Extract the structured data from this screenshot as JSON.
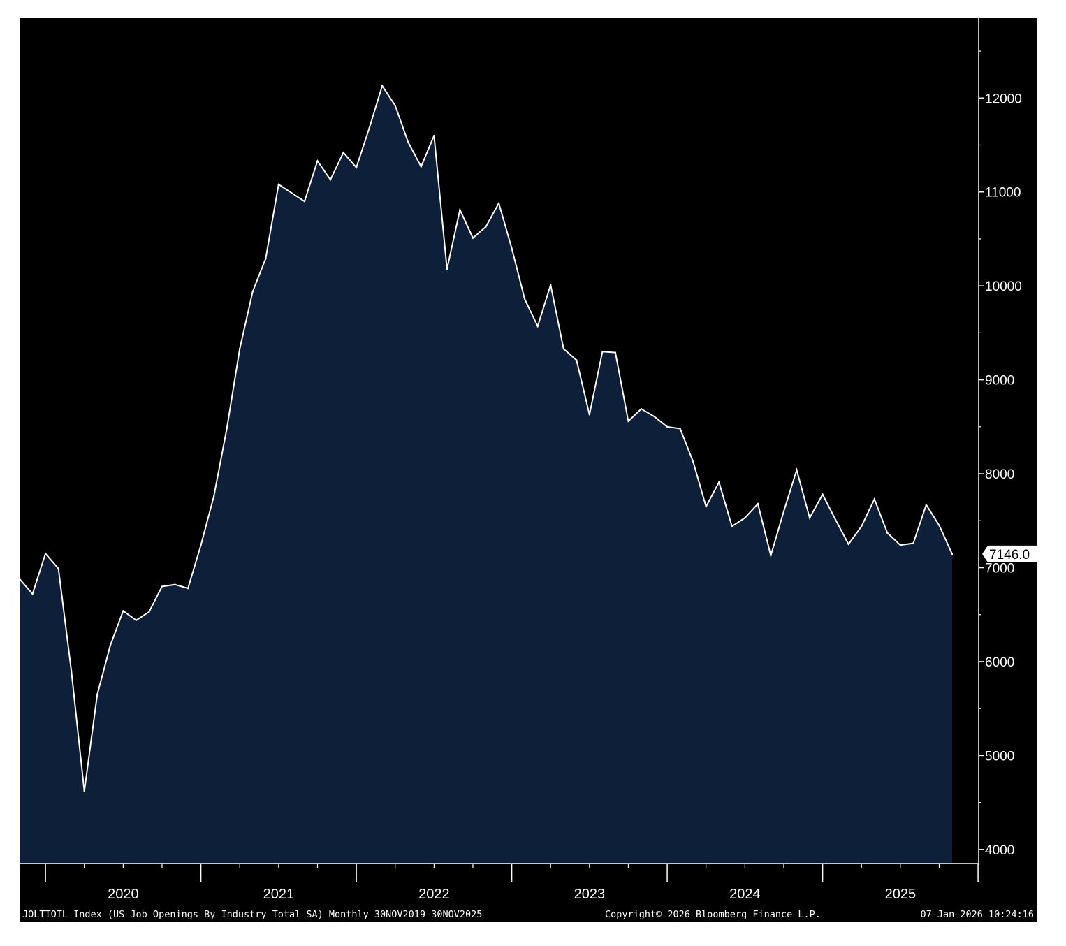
{
  "chart_data": {
    "type": "area",
    "title": "",
    "series": [
      {
        "frequency": "Monthly",
        "values": [
          6880,
          6720,
          7150,
          6990,
          5900,
          4620,
          5650,
          6170,
          6540,
          6440,
          6530,
          6800,
          6820,
          6780,
          7240,
          7760,
          8480,
          9330,
          9940,
          10290,
          11080,
          10990,
          10900,
          11330,
          11130,
          11420,
          11260,
          11680,
          12130,
          11920,
          11530,
          11270,
          11600,
          10180,
          10810,
          10510,
          10630,
          10880,
          10400,
          9860,
          9570,
          10010,
          9330,
          9210,
          8630,
          9300,
          9290,
          8560,
          8690,
          8610,
          8500,
          8480,
          8130,
          7650,
          7910,
          7440,
          7530,
          7680,
          7130,
          7600,
          8040,
          7530,
          7780,
          7510,
          7250,
          7440,
          7730,
          7370,
          7240,
          7260,
          7670,
          7450,
          7146
        ]
      }
    ],
    "x_start": "2019-11-30",
    "x_end": "2025-11-30",
    "x_tick_labels": [
      "2020",
      "2021",
      "2022",
      "2023",
      "2024",
      "2025"
    ],
    "y_ticks": [
      4000,
      5000,
      6000,
      7000,
      8000,
      9000,
      10000,
      11000,
      12000
    ],
    "ylim": [
      3850,
      12850
    ],
    "y_axis_side": "right",
    "last_value_label": "7146.0",
    "grid": false,
    "legend": "none",
    "colors": {
      "background": "#000000",
      "area_fill": "#0e1f3a",
      "line": "#ffffff",
      "axis": "#ffffff"
    }
  },
  "footer": {
    "description": "JOLTTOTL Index (US Job Openings By Industry Total SA) Monthly 30NOV2019-30NOV2025",
    "copyright": "Copyright© 2026 Bloomberg Finance L.P.",
    "timestamp": "07-Jan-2026 10:24:16"
  }
}
